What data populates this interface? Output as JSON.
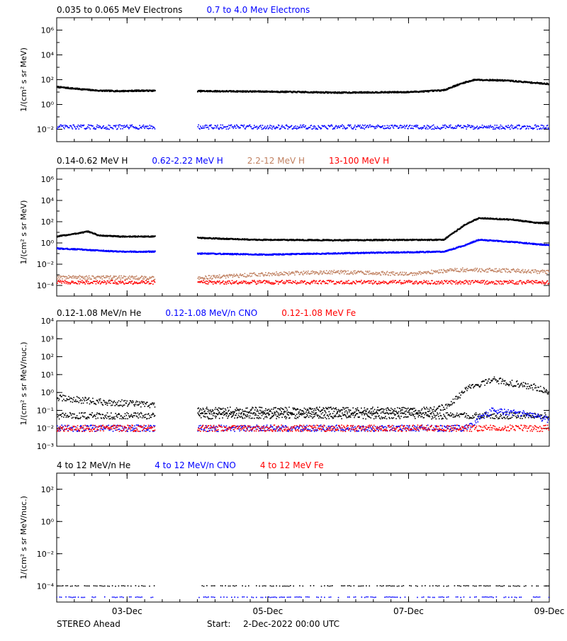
{
  "chart_data": [
    {
      "type": "scatter",
      "yscale": "log",
      "ylabel": "1/(cm² s sr MeV)",
      "ylim": [
        0.001,
        10000000
      ],
      "yticks": [
        {
          "value": 0.01,
          "label": "10⁻²"
        },
        {
          "value": 1,
          "label": "10⁰"
        },
        {
          "value": 100,
          "label": "10²"
        },
        {
          "value": 10000,
          "label": "10⁴"
        },
        {
          "value": 1000000,
          "label": "10⁶"
        }
      ],
      "legend": [
        {
          "label": "0.035 to 0.065 MeV Electrons",
          "color": "#000000"
        },
        {
          "label": "0.7 to 4.0 Mev Electrons",
          "color": "#0000ff"
        }
      ],
      "series": [
        {
          "color": "#000000",
          "style": "dense",
          "points": [
            [
              0.0,
              26
            ],
            [
              0.3,
              18
            ],
            [
              0.6,
              13
            ],
            [
              0.9,
              12
            ],
            [
              1.2,
              13
            ],
            [
              2.0,
              12
            ],
            [
              3.0,
              11
            ],
            [
              4.0,
              9
            ],
            [
              5.0,
              10
            ],
            [
              5.3,
              12
            ],
            [
              5.5,
              14
            ],
            [
              5.65,
              30
            ],
            [
              5.8,
              60
            ],
            [
              5.95,
              100
            ],
            [
              6.4,
              85
            ],
            [
              6.8,
              55
            ],
            [
              7.0,
              45
            ]
          ]
        },
        {
          "color": "#0000ff",
          "style": "scatter",
          "points": [
            [
              0.0,
              0.015
            ],
            [
              1.4,
              0.015
            ],
            [
              2.0,
              0.015
            ],
            [
              7.0,
              0.015
            ]
          ]
        }
      ]
    },
    {
      "type": "scatter",
      "yscale": "log",
      "ylabel": "1/(cm² s sr MeV)",
      "ylim": [
        1e-05,
        10000000
      ],
      "yticks": [
        {
          "value": 0.0001,
          "label": "10⁻⁴"
        },
        {
          "value": 0.01,
          "label": "10⁻²"
        },
        {
          "value": 1,
          "label": "10⁰"
        },
        {
          "value": 100,
          "label": "10²"
        },
        {
          "value": 10000,
          "label": "10⁴"
        },
        {
          "value": 1000000,
          "label": "10⁶"
        }
      ],
      "legend": [
        {
          "label": "0.14-0.62 MeV H",
          "color": "#000000"
        },
        {
          "label": "0.62-2.22 MeV H",
          "color": "#0000ff"
        },
        {
          "label": "2.2-12 MeV H",
          "color": "#c08060"
        },
        {
          "label": "13-100 MeV H",
          "color": "#ff0000"
        }
      ],
      "series": [
        {
          "color": "#000000",
          "style": "dense",
          "points": [
            [
              0.0,
              4
            ],
            [
              0.3,
              8
            ],
            [
              0.45,
              12
            ],
            [
              0.6,
              5
            ],
            [
              0.9,
              4
            ],
            [
              1.4,
              4
            ],
            [
              2.0,
              3
            ],
            [
              2.8,
              2
            ],
            [
              4.0,
              1.8
            ],
            [
              5.5,
              2
            ],
            [
              5.65,
              10
            ],
            [
              5.8,
              50
            ],
            [
              6.0,
              220
            ],
            [
              6.5,
              150
            ],
            [
              6.8,
              80
            ],
            [
              7.0,
              70
            ]
          ]
        },
        {
          "color": "#0000ff",
          "style": "dense",
          "points": [
            [
              0.0,
              0.3
            ],
            [
              0.3,
              0.25
            ],
            [
              0.9,
              0.15
            ],
            [
              1.4,
              0.15
            ],
            [
              2.0,
              0.1
            ],
            [
              3.0,
              0.08
            ],
            [
              4.5,
              0.12
            ],
            [
              5.5,
              0.15
            ],
            [
              5.8,
              0.6
            ],
            [
              6.0,
              2
            ],
            [
              6.5,
              1.2
            ],
            [
              7.0,
              0.6
            ]
          ]
        },
        {
          "color": "#c08060",
          "style": "scatter",
          "points": [
            [
              0.0,
              0.0006
            ],
            [
              1.4,
              0.0005
            ],
            [
              2.0,
              0.0005
            ],
            [
              3.0,
              0.0012
            ],
            [
              4.0,
              0.0018
            ],
            [
              5.0,
              0.0012
            ],
            [
              5.7,
              0.003
            ],
            [
              6.5,
              0.0025
            ],
            [
              7.0,
              0.0018
            ]
          ]
        },
        {
          "color": "#ff0000",
          "style": "scatter",
          "points": [
            [
              0.0,
              0.0002
            ],
            [
              1.4,
              0.0002
            ],
            [
              2.0,
              0.0002
            ],
            [
              4.0,
              0.0002
            ],
            [
              7.0,
              0.0002
            ]
          ]
        }
      ]
    },
    {
      "type": "scatter",
      "yscale": "log",
      "ylabel": "1/(cm² s sr MeV/nuc.)",
      "ylim": [
        0.001,
        10000
      ],
      "yticks": [
        {
          "value": 0.001,
          "label": "10⁻³"
        },
        {
          "value": 0.01,
          "label": "10⁻²"
        },
        {
          "value": 0.1,
          "label": "10⁻¹"
        },
        {
          "value": 1,
          "label": "10⁰"
        },
        {
          "value": 10,
          "label": "10¹"
        },
        {
          "value": 100,
          "label": "10²"
        },
        {
          "value": 1000,
          "label": "10³"
        },
        {
          "value": 10000,
          "label": "10⁴"
        }
      ],
      "legend": [
        {
          "label": "0.12-1.08 MeV/n He",
          "color": "#000000"
        },
        {
          "label": "0.12-1.08 MeV/n CNO",
          "color": "#0000ff"
        },
        {
          "label": "0.12-1.08 MeV Fe",
          "color": "#ff0000"
        }
      ],
      "series": [
        {
          "color": "#000000",
          "style": "scatter",
          "points": [
            [
              0.0,
              0.5
            ],
            [
              0.6,
              0.3
            ],
            [
              1.4,
              0.2
            ],
            [
              2.0,
              0.1
            ],
            [
              3.5,
              0.1
            ],
            [
              5.3,
              0.1
            ],
            [
              5.6,
              0.2
            ],
            [
              5.8,
              1.5
            ],
            [
              6.2,
              5
            ],
            [
              6.8,
              2
            ],
            [
              7.0,
              1
            ]
          ]
        },
        {
          "color": "#000000",
          "style": "scatter",
          "points": [
            [
              2.0,
              0.05
            ],
            [
              5.5,
              0.05
            ],
            [
              7.0,
              0.05
            ]
          ]
        },
        {
          "color": "#0000ff",
          "style": "scatter",
          "points": [
            [
              0.0,
              0.01
            ],
            [
              5.8,
              0.01
            ],
            [
              6.2,
              0.1
            ],
            [
              6.7,
              0.06
            ],
            [
              7.0,
              0.03
            ]
          ]
        },
        {
          "color": "#ff0000",
          "style": "scatter",
          "points": [
            [
              0.0,
              0.01
            ],
            [
              7.0,
              0.01
            ]
          ]
        }
      ]
    },
    {
      "type": "scatter",
      "yscale": "log",
      "ylabel": "1/(cm² s sr MeV/nuc.)",
      "ylim": [
        1e-05,
        1000
      ],
      "yticks": [
        {
          "value": 0.0001,
          "label": "10⁻⁴"
        },
        {
          "value": 0.01,
          "label": "10⁻²"
        },
        {
          "value": 1,
          "label": "10⁰"
        },
        {
          "value": 100,
          "label": "10²"
        }
      ],
      "legend": [
        {
          "label": "4 to 12 MeV/n He",
          "color": "#000000"
        },
        {
          "label": "4 to 12 MeV/n CNO",
          "color": "#0000ff"
        },
        {
          "label": "4 to 12 MeV Fe",
          "color": "#ff0000"
        }
      ],
      "series": [
        {
          "color": "#000000",
          "style": "sparse",
          "points": [
            [
              0.0,
              0.0001
            ],
            [
              1.4,
              0.0001
            ],
            [
              2.0,
              0.0001
            ],
            [
              7.0,
              0.0001
            ]
          ]
        },
        {
          "color": "#0000ff",
          "style": "sparse",
          "points": [
            [
              0.3,
              2e-05
            ],
            [
              6.4,
              2e-05
            ]
          ]
        }
      ]
    }
  ],
  "x_axis": {
    "xlim": [
      0,
      7
    ],
    "gaps": [
      [
        1.4,
        2.0
      ]
    ],
    "ticks": [
      {
        "value": 1,
        "label": "03-Dec"
      },
      {
        "value": 3,
        "label": "05-Dec"
      },
      {
        "value": 5,
        "label": "07-Dec"
      },
      {
        "value": 7,
        "label": "09-Dec"
      }
    ]
  },
  "footer": {
    "spacecraft": "STEREO Ahead",
    "start_label": "Start:",
    "start_value": "2-Dec-2022 00:00 UTC"
  }
}
